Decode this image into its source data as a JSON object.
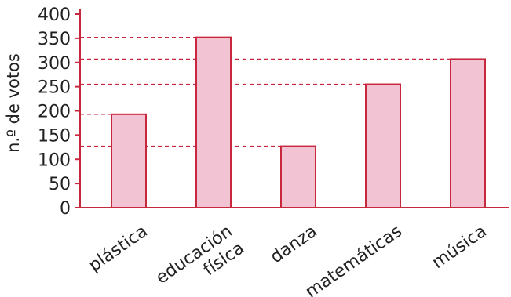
{
  "chart_data": {
    "type": "bar",
    "categories": [
      [
        "plástica"
      ],
      [
        "educación",
        "física"
      ],
      [
        "danza"
      ],
      [
        "matemáticas"
      ],
      [
        "música"
      ]
    ],
    "values": [
      193,
      352,
      127,
      255,
      307
    ],
    "ylabel": "n.º de votos",
    "xlabel": "",
    "ylim": [
      0,
      400
    ],
    "yticks": [
      0,
      50,
      100,
      150,
      200,
      250,
      300,
      350,
      400
    ],
    "yticks_text": [
      "0",
      "50",
      "100",
      "150",
      "200",
      "250",
      "300",
      "350",
      "400"
    ],
    "reference_lines": [
      193,
      352,
      127,
      255,
      307
    ],
    "grid": false,
    "colors": {
      "bar_fill": "#f2c4d3",
      "bar_stroke": "#c8283e",
      "axis": "#c8283e",
      "guide": "#c8283e",
      "text": "#222222"
    }
  }
}
